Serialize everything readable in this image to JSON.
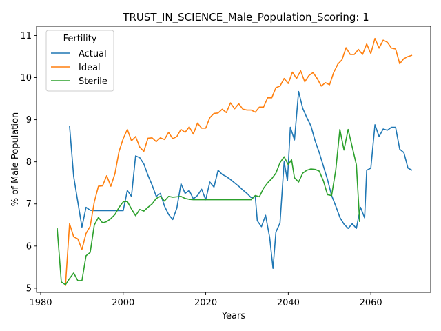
{
  "chart_data": {
    "type": "line",
    "title": "TRUST_IN_SCIENCE_Male_Population_Scoring: 1",
    "xlabel": "Years",
    "ylabel": "% of Male Population",
    "xlim": [
      1979,
      2074.5
    ],
    "ylim": [
      4.9,
      11.22
    ],
    "xticks": [
      1980,
      2000,
      2020,
      2040,
      2060
    ],
    "yticks": [
      5,
      6,
      7,
      8,
      9,
      10,
      11
    ],
    "legend": {
      "title": "Fertility",
      "placement": "top-left"
    },
    "grid": false,
    "series": [
      {
        "name": "Actual",
        "color": "#1f77b4",
        "points": [
          [
            1987,
            8.85
          ],
          [
            1988,
            7.65
          ],
          [
            1989,
            7.05
          ],
          [
            1990,
            6.45
          ],
          [
            1991,
            6.92
          ],
          [
            1992,
            6.85
          ],
          [
            1993,
            6.84
          ],
          [
            1994,
            6.84
          ],
          [
            1995,
            6.84
          ],
          [
            1996,
            6.84
          ],
          [
            1997,
            6.84
          ],
          [
            1998,
            6.84
          ],
          [
            1999,
            6.84
          ],
          [
            2000,
            6.84
          ],
          [
            2001,
            7.32
          ],
          [
            2002,
            7.18
          ],
          [
            2003,
            8.14
          ],
          [
            2004,
            8.1
          ],
          [
            2005,
            7.95
          ],
          [
            2006,
            7.68
          ],
          [
            2007,
            7.45
          ],
          [
            2008,
            7.18
          ],
          [
            2009,
            7.25
          ],
          [
            2010,
            6.95
          ],
          [
            2011,
            6.75
          ],
          [
            2012,
            6.63
          ],
          [
            2013,
            6.9
          ],
          [
            2014,
            7.48
          ],
          [
            2015,
            7.25
          ],
          [
            2016,
            7.32
          ],
          [
            2017,
            7.12
          ],
          [
            2018,
            7.2
          ],
          [
            2019,
            7.35
          ],
          [
            2020,
            7.1
          ],
          [
            2021,
            7.52
          ],
          [
            2022,
            7.4
          ],
          [
            2023,
            7.8
          ],
          [
            2024,
            7.7
          ],
          [
            2025,
            7.65
          ],
          [
            2026,
            7.58
          ],
          [
            2027,
            7.5
          ],
          [
            2028,
            7.42
          ],
          [
            2029,
            7.33
          ],
          [
            2030,
            7.25
          ],
          [
            2031,
            7.15
          ],
          [
            2032,
            7.18
          ],
          [
            2032.5,
            6.6
          ],
          [
            2033.5,
            6.46
          ],
          [
            2034.5,
            6.73
          ],
          [
            2035.5,
            6.2
          ],
          [
            2036.3,
            5.47
          ],
          [
            2037,
            6.33
          ],
          [
            2038,
            6.55
          ],
          [
            2039,
            8.0
          ],
          [
            2039.8,
            7.55
          ],
          [
            2040.5,
            8.82
          ],
          [
            2041.5,
            8.52
          ],
          [
            2042.5,
            9.67
          ],
          [
            2043.5,
            9.27
          ],
          [
            2044.5,
            9.05
          ],
          [
            2045.5,
            8.85
          ],
          [
            2046.5,
            8.5
          ],
          [
            2047.5,
            8.22
          ],
          [
            2048.5,
            7.9
          ],
          [
            2049.5,
            7.58
          ],
          [
            2050.5,
            7.2
          ],
          [
            2051.5,
            6.95
          ],
          [
            2052.5,
            6.68
          ],
          [
            2053.5,
            6.52
          ],
          [
            2054.5,
            6.42
          ],
          [
            2055.5,
            6.53
          ],
          [
            2056.5,
            6.42
          ],
          [
            2057.5,
            6.92
          ],
          [
            2058.5,
            6.67
          ],
          [
            2059,
            7.8
          ],
          [
            2060,
            7.85
          ],
          [
            2061,
            8.88
          ],
          [
            2062,
            8.6
          ],
          [
            2063,
            8.78
          ],
          [
            2064,
            8.75
          ],
          [
            2065,
            8.82
          ],
          [
            2066,
            8.82
          ],
          [
            2067,
            8.3
          ],
          [
            2068,
            8.22
          ],
          [
            2069,
            7.85
          ],
          [
            2070,
            7.8
          ]
        ]
      },
      {
        "name": "Ideal",
        "color": "#ff7f0e",
        "points": [
          [
            1986,
            5.05
          ],
          [
            1987,
            6.53
          ],
          [
            1988,
            6.22
          ],
          [
            1989,
            6.17
          ],
          [
            1990,
            5.92
          ],
          [
            1991,
            6.3
          ],
          [
            1992,
            6.47
          ],
          [
            1993,
            7.05
          ],
          [
            1994,
            7.42
          ],
          [
            1995,
            7.43
          ],
          [
            1996,
            7.67
          ],
          [
            1997,
            7.42
          ],
          [
            1998,
            7.72
          ],
          [
            1999,
            8.25
          ],
          [
            2000,
            8.55
          ],
          [
            2001,
            8.77
          ],
          [
            2002,
            8.5
          ],
          [
            2003,
            8.6
          ],
          [
            2004,
            8.35
          ],
          [
            2005,
            8.25
          ],
          [
            2006,
            8.56
          ],
          [
            2007,
            8.57
          ],
          [
            2008,
            8.48
          ],
          [
            2009,
            8.57
          ],
          [
            2010,
            8.53
          ],
          [
            2011,
            8.7
          ],
          [
            2012,
            8.55
          ],
          [
            2013,
            8.6
          ],
          [
            2014,
            8.77
          ],
          [
            2015,
            8.7
          ],
          [
            2016,
            8.83
          ],
          [
            2017,
            8.66
          ],
          [
            2018,
            8.92
          ],
          [
            2019,
            8.8
          ],
          [
            2020,
            8.8
          ],
          [
            2021,
            9.05
          ],
          [
            2022,
            9.15
          ],
          [
            2023,
            9.16
          ],
          [
            2024,
            9.25
          ],
          [
            2025,
            9.17
          ],
          [
            2026,
            9.4
          ],
          [
            2027,
            9.26
          ],
          [
            2028,
            9.38
          ],
          [
            2029,
            9.25
          ],
          [
            2030,
            9.23
          ],
          [
            2031,
            9.23
          ],
          [
            2032,
            9.18
          ],
          [
            2033,
            9.3
          ],
          [
            2034,
            9.3
          ],
          [
            2035,
            9.52
          ],
          [
            2036,
            9.52
          ],
          [
            2037,
            9.76
          ],
          [
            2038,
            9.8
          ],
          [
            2039,
            9.98
          ],
          [
            2040,
            9.86
          ],
          [
            2041,
            10.13
          ],
          [
            2042,
            9.98
          ],
          [
            2043,
            10.16
          ],
          [
            2044,
            9.9
          ],
          [
            2045,
            10.05
          ],
          [
            2046,
            10.12
          ],
          [
            2047,
            9.98
          ],
          [
            2048,
            9.8
          ],
          [
            2049,
            9.88
          ],
          [
            2050,
            9.83
          ],
          [
            2051,
            10.12
          ],
          [
            2052,
            10.32
          ],
          [
            2053,
            10.42
          ],
          [
            2054,
            10.71
          ],
          [
            2055,
            10.55
          ],
          [
            2056,
            10.55
          ],
          [
            2057,
            10.67
          ],
          [
            2058,
            10.55
          ],
          [
            2059,
            10.8
          ],
          [
            2060,
            10.57
          ],
          [
            2061,
            10.93
          ],
          [
            2062,
            10.7
          ],
          [
            2063,
            10.89
          ],
          [
            2064,
            10.84
          ],
          [
            2065,
            10.7
          ],
          [
            2066,
            10.68
          ],
          [
            2067,
            10.33
          ],
          [
            2068,
            10.45
          ],
          [
            2069,
            10.5
          ],
          [
            2070,
            10.53
          ]
        ]
      },
      {
        "name": "Sterile",
        "color": "#2ca02c",
        "points": [
          [
            1984,
            6.43
          ],
          [
            1985,
            5.15
          ],
          [
            1986,
            5.08
          ],
          [
            1987,
            5.23
          ],
          [
            1988,
            5.36
          ],
          [
            1989,
            5.18
          ],
          [
            1990,
            5.18
          ],
          [
            1991,
            5.77
          ],
          [
            1992,
            5.85
          ],
          [
            1993,
            6.5
          ],
          [
            1994,
            6.68
          ],
          [
            1995,
            6.55
          ],
          [
            1996,
            6.58
          ],
          [
            1997,
            6.65
          ],
          [
            1998,
            6.75
          ],
          [
            1999,
            6.92
          ],
          [
            2000,
            7.05
          ],
          [
            2001,
            7.06
          ],
          [
            2002,
            6.88
          ],
          [
            2003,
            6.72
          ],
          [
            2004,
            6.87
          ],
          [
            2005,
            6.83
          ],
          [
            2006,
            6.92
          ],
          [
            2007,
            7.0
          ],
          [
            2008,
            7.13
          ],
          [
            2009,
            7.18
          ],
          [
            2010,
            7.07
          ],
          [
            2011,
            7.18
          ],
          [
            2012,
            7.16
          ],
          [
            2013,
            7.17
          ],
          [
            2014,
            7.18
          ],
          [
            2015,
            7.13
          ],
          [
            2016,
            7.11
          ],
          [
            2017,
            7.1
          ],
          [
            2018,
            7.1
          ],
          [
            2019,
            7.1
          ],
          [
            2020,
            7.1
          ],
          [
            2021,
            7.1
          ],
          [
            2022,
            7.1
          ],
          [
            2023,
            7.1
          ],
          [
            2024,
            7.1
          ],
          [
            2025,
            7.1
          ],
          [
            2026,
            7.1
          ],
          [
            2027,
            7.1
          ],
          [
            2028,
            7.1
          ],
          [
            2029,
            7.1
          ],
          [
            2030,
            7.1
          ],
          [
            2031,
            7.1
          ],
          [
            2032,
            7.2
          ],
          [
            2033,
            7.17
          ],
          [
            2034,
            7.37
          ],
          [
            2035,
            7.5
          ],
          [
            2036,
            7.6
          ],
          [
            2037,
            7.73
          ],
          [
            2038,
            7.98
          ],
          [
            2039,
            8.12
          ],
          [
            2040,
            7.93
          ],
          [
            2040.8,
            8.05
          ],
          [
            2041.5,
            7.62
          ],
          [
            2042.5,
            7.52
          ],
          [
            2043.5,
            7.73
          ],
          [
            2044.5,
            7.8
          ],
          [
            2045.5,
            7.83
          ],
          [
            2046.5,
            7.82
          ],
          [
            2047.5,
            7.78
          ],
          [
            2048.5,
            7.55
          ],
          [
            2049.5,
            7.22
          ],
          [
            2050.5,
            7.2
          ],
          [
            2051.5,
            7.8
          ],
          [
            2052.5,
            8.77
          ],
          [
            2053.5,
            8.28
          ],
          [
            2054.5,
            8.77
          ],
          [
            2055.5,
            8.35
          ],
          [
            2056.5,
            7.93
          ],
          [
            2057.3,
            6.57
          ]
        ]
      }
    ]
  }
}
